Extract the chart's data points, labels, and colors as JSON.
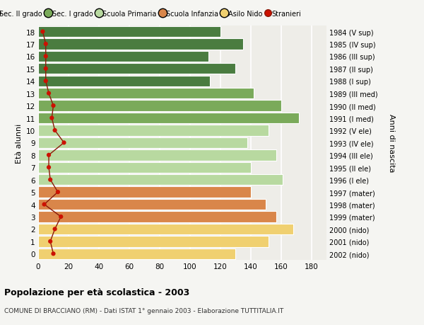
{
  "ages": [
    18,
    17,
    16,
    15,
    14,
    13,
    12,
    11,
    10,
    9,
    8,
    7,
    6,
    5,
    4,
    3,
    2,
    1,
    0
  ],
  "right_labels": [
    "1984 (V sup)",
    "1985 (IV sup)",
    "1986 (III sup)",
    "1987 (II sup)",
    "1988 (I sup)",
    "1989 (III med)",
    "1990 (II med)",
    "1991 (I med)",
    "1992 (V ele)",
    "1993 (IV ele)",
    "1994 (III ele)",
    "1995 (II ele)",
    "1996 (I ele)",
    "1997 (mater)",
    "1998 (mater)",
    "1999 (mater)",
    "2000 (nido)",
    "2001 (nido)",
    "2002 (nido)"
  ],
  "bar_values": [
    120,
    135,
    112,
    130,
    113,
    142,
    160,
    172,
    152,
    138,
    157,
    140,
    161,
    140,
    150,
    157,
    168,
    152,
    130
  ],
  "bar_colors": [
    "#4a7c40",
    "#4a7c40",
    "#4a7c40",
    "#4a7c40",
    "#4a7c40",
    "#7aaa5a",
    "#7aaa5a",
    "#7aaa5a",
    "#b8d9a0",
    "#b8d9a0",
    "#b8d9a0",
    "#b8d9a0",
    "#b8d9a0",
    "#d9864a",
    "#d9864a",
    "#d9864a",
    "#f0d070",
    "#f0d070",
    "#f0d070"
  ],
  "stranieri_values": [
    3,
    5,
    5,
    5,
    5,
    7,
    10,
    9,
    11,
    17,
    7,
    7,
    8,
    13,
    4,
    15,
    11,
    8,
    10
  ],
  "legend_labels": [
    "Sec. II grado",
    "Sec. I grado",
    "Scuola Primaria",
    "Scuola Infanzia",
    "Asilo Nido",
    "Stranieri"
  ],
  "legend_colors": [
    "#4a7c40",
    "#7aaa5a",
    "#b8d9a0",
    "#d9864a",
    "#f0d070",
    "#cc2200"
  ],
  "title": "Popolazione per età scolastica - 2003",
  "subtitle": "COMUNE DI BRACCIANO (RM) - Dati ISTAT 1° gennaio 2003 - Elaborazione TUTTITALIA.IT",
  "ylabel_left": "Età alunni",
  "ylabel_right": "Anni di nascita",
  "xlim": [
    0,
    190
  ],
  "xticks": [
    0,
    20,
    40,
    60,
    80,
    100,
    120,
    140,
    160,
    180
  ],
  "background_color": "#f5f5f2",
  "bar_background": "#eeede8",
  "grid_color": "#ffffff"
}
